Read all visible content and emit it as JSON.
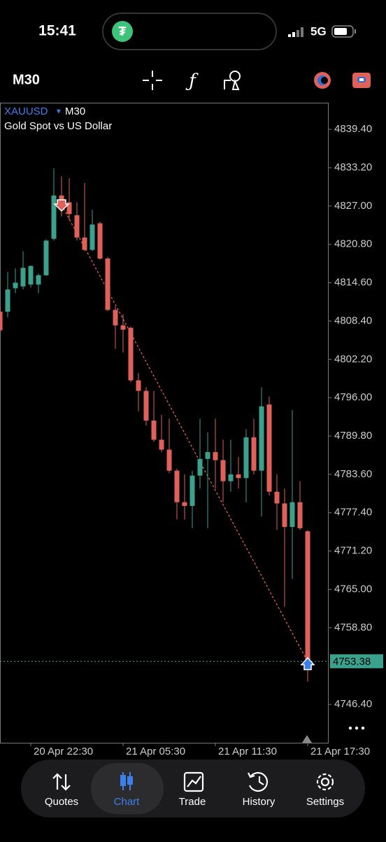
{
  "status_bar": {
    "time": "15:41",
    "network": "5G"
  },
  "toolbar": {
    "timeframe": "M30"
  },
  "chart_data": {
    "type": "candlestick",
    "symbol": "XAUUSD",
    "timeframe": "M30",
    "subtitle": "Gold Spot vs US Dollar",
    "categories": [
      null,
      null,
      null,
      null,
      "20 Apr 22:30",
      null,
      null,
      null,
      null,
      null,
      null,
      null,
      null,
      null,
      null,
      null,
      "21 Apr 05:30",
      null,
      null,
      null,
      null,
      null,
      null,
      null,
      null,
      null,
      null,
      null,
      "21 Apr 11:30",
      null,
      null,
      null,
      null,
      null,
      null,
      null,
      null,
      null,
      null,
      null,
      "21 Apr 17:30"
    ],
    "open": [
      4809.9,
      4809.9,
      4813.7,
      4814.0,
      4814.3,
      4814.3,
      4815.8,
      4821.7,
      4828.7,
      4827.6,
      4825.5,
      4821.9,
      4819.9,
      4824.2,
      4818.5,
      4810.2,
      4807.7,
      4807.3,
      4798.8,
      4797.1,
      4792.3,
      4789.2,
      4787.6,
      4784.2,
      4779.1,
      4778.5,
      4783.4,
      4786.1,
      4787.2,
      4785.9,
      4782.5,
      4783.6,
      4783.0,
      4789.6,
      4784.2,
      4794.9,
      4780.8,
      4778.9,
      4775.1,
      4779.1,
      4774.4
    ],
    "high": [
      4810.7,
      4816.3,
      4816.9,
      4819.7,
      4817.4,
      4816.1,
      4821.6,
      4833.1,
      4831.8,
      4831.5,
      4827.6,
      4830.7,
      4826.4,
      4824.4,
      4818.8,
      4810.7,
      4809.5,
      4807.5,
      4800.0,
      4797.7,
      4797.1,
      4793.2,
      4792.6,
      4784.5,
      4783.6,
      4784.2,
      4792.6,
      4790.4,
      4792.6,
      4789.2,
      4789.2,
      4786.4,
      4790.9,
      4792.6,
      4797.7,
      4796.2,
      4783.6,
      4781.3,
      4794.0,
      4782.5,
      4774.6
    ],
    "low": [
      4806.7,
      4809.0,
      4812.9,
      4813.5,
      4813.8,
      4812.9,
      4815.7,
      4821.4,
      4825.3,
      4824.7,
      4821.4,
      4819.7,
      4819.7,
      4818.3,
      4810.0,
      4803.9,
      4803.3,
      4798.5,
      4793.8,
      4791.5,
      4788.9,
      4787.2,
      4783.8,
      4776.3,
      4776.3,
      4774.9,
      4781.3,
      4774.9,
      4781.3,
      4779.1,
      4780.8,
      4781.3,
      4779.1,
      4783.6,
      4776.8,
      4780.2,
      4774.6,
      4762.2,
      4766.7,
      4774.6,
      4750.1
    ],
    "close": [
      4806.9,
      4813.5,
      4814.6,
      4817.0,
      4817.3,
      4815.8,
      4821.4,
      4828.7,
      4826.4,
      4825.7,
      4821.9,
      4819.9,
      4824.0,
      4818.5,
      4810.2,
      4807.7,
      4807.0,
      4798.8,
      4797.1,
      4792.3,
      4789.2,
      4787.6,
      4784.2,
      4779.1,
      4778.5,
      4783.4,
      4786.1,
      4787.2,
      4785.9,
      4782.5,
      4783.6,
      4783.0,
      4789.6,
      4784.2,
      4794.6,
      4780.8,
      4778.9,
      4775.1,
      4779.1,
      4774.9,
      4753.38
    ],
    "up_color": "#3aa18d",
    "down_color": "#e0605a",
    "last_price": 4753.38,
    "ylim": [
      4740.2,
      4843.7
    ],
    "yticks": [
      {
        "value": 4839.4,
        "label": "4839.40"
      },
      {
        "value": 4833.2,
        "label": "4833.20"
      },
      {
        "value": 4827,
        "label": "4827.00"
      },
      {
        "value": 4820.8,
        "label": "4820.80"
      },
      {
        "value": 4814.6,
        "label": "4814.60"
      },
      {
        "value": 4808.4,
        "label": "4808.40"
      },
      {
        "value": 4802.2,
        "label": "4802.20"
      },
      {
        "value": 4796,
        "label": "4796.00"
      },
      {
        "value": 4789.8,
        "label": "4789.80"
      },
      {
        "value": 4783.6,
        "label": "4783.60"
      },
      {
        "value": 4777.4,
        "label": "4777.40"
      },
      {
        "value": 4771.2,
        "label": "4771.20"
      },
      {
        "value": 4765,
        "label": "4765.00"
      },
      {
        "value": 4758.8,
        "label": "4758.80"
      },
      {
        "value": 4746.4,
        "label": "4746.40"
      }
    ]
  },
  "tabs": [
    "Quotes",
    "Chart",
    "Trade",
    "History",
    "Settings"
  ]
}
